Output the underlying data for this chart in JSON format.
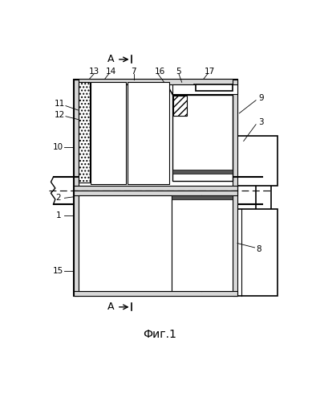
{
  "title": "Фиг.1",
  "bg": "#ffffff",
  "lc": "#000000",
  "fig_width": 3.89,
  "fig_height": 5.0,
  "dpi": 100
}
